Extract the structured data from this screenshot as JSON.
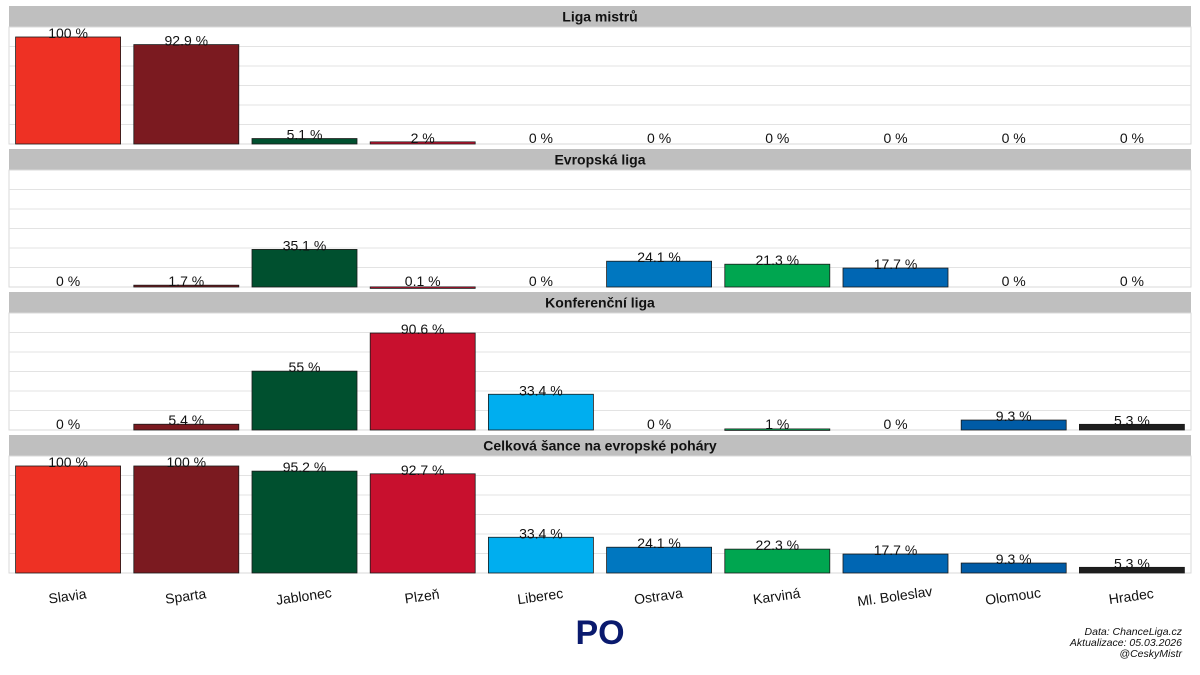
{
  "chart_data": {
    "type": "bar",
    "categories": [
      "Slavia",
      "Sparta",
      "Jablonec",
      "Plzeň",
      "Liberec",
      "Ostrava",
      "Karviná",
      "Ml. Boleslav",
      "Olomouc",
      "Hradec"
    ],
    "team_colors": [
      "#ee3124",
      "#7b1a20",
      "#00502f",
      "#c8102e",
      "#00aeef",
      "#0077c0",
      "#00a650",
      "#0066b3",
      "#005ba6",
      "#1e1e1e"
    ],
    "value_suffix": " %",
    "ylim": [
      0,
      100
    ],
    "grid": true,
    "panels": [
      {
        "title": "Liga mistrů",
        "values": [
          100,
          92.9,
          5.1,
          2,
          0,
          0,
          0,
          0,
          0,
          0
        ]
      },
      {
        "title": "Evropská liga",
        "values": [
          0,
          1.7,
          35.1,
          0.1,
          0,
          24.1,
          21.3,
          17.7,
          0,
          0
        ]
      },
      {
        "title": "Konferenční liga",
        "values": [
          0,
          5.4,
          55,
          90.6,
          33.4,
          0,
          1,
          0,
          9.3,
          5.3
        ]
      },
      {
        "title": "Celková šance na evropské poháry",
        "values": [
          100,
          100,
          95.2,
          92.7,
          33.4,
          24.1,
          22.3,
          17.7,
          9.3,
          5.3
        ]
      }
    ]
  },
  "footer": {
    "label": "PO",
    "label_color": "#0a1a6e",
    "source": "Data: ChanceLiga.cz",
    "updated": "Aktualizace:  05.03.2026",
    "handle": "@CeskyMistr"
  }
}
